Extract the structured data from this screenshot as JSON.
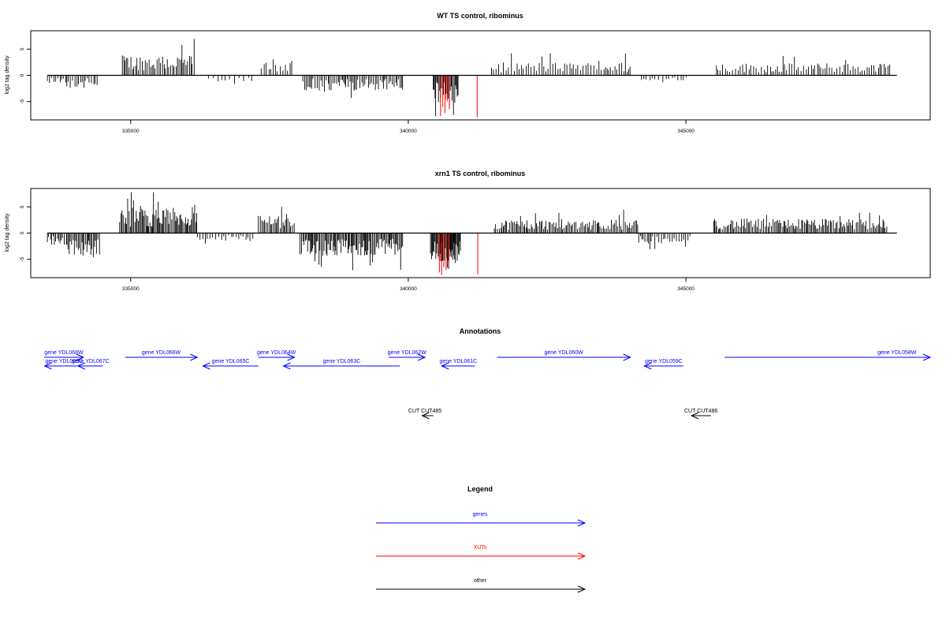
{
  "chart_data": [
    {
      "type": "bar",
      "title": "WT TS control, ribominus",
      "ylabel": "log2 tag density",
      "xlim": [
        333200,
        349400
      ],
      "ylim": [
        -8.5,
        8.5
      ],
      "x_ticks": [
        335000,
        340000,
        345000
      ],
      "y_ticks": [
        -5,
        0,
        5
      ],
      "grid": false,
      "regions": [
        {
          "from": 333500,
          "to": 333850,
          "sign": -1,
          "mean": 1.0,
          "step": 35
        },
        {
          "from": 333850,
          "to": 334400,
          "sign": -1,
          "mean": 1.7,
          "step": 35
        },
        {
          "from": 334850,
          "to": 336150,
          "sign": 1,
          "mean": 2.7,
          "step": 28
        },
        {
          "from": 336400,
          "to": 337200,
          "sign": -1,
          "mean": 0.8,
          "step": 70
        },
        {
          "from": 337350,
          "to": 337950,
          "sign": 1,
          "mean": 1.9,
          "step": 45
        },
        {
          "from": 338100,
          "to": 339900,
          "sign": -1,
          "mean": 2.0,
          "step": 28
        },
        {
          "from": 340450,
          "to": 340900,
          "sign": -1,
          "mean": 3.6,
          "step": 18
        },
        {
          "from": 341500,
          "to": 344000,
          "sign": 1,
          "mean": 1.7,
          "step": 40
        },
        {
          "from": 344200,
          "to": 345050,
          "sign": -1,
          "mean": 0.8,
          "step": 60
        },
        {
          "from": 345550,
          "to": 348700,
          "sign": 1,
          "mean": 1.6,
          "step": 40
        }
      ],
      "xut_peaks": [
        {
          "x": 340580,
          "y": -7.8
        },
        {
          "x": 340620,
          "y": -6.0
        },
        {
          "x": 340660,
          "y": -7.2
        },
        {
          "x": 340700,
          "y": -5.0
        },
        {
          "x": 340740,
          "y": -6.5
        },
        {
          "x": 341240,
          "y": -8.0
        }
      ]
    },
    {
      "type": "bar",
      "title": "xrn1 TS control, ribominus",
      "ylabel": "log2 tag density",
      "xlim": [
        333200,
        349400
      ],
      "ylim": [
        -8.5,
        8.5
      ],
      "x_ticks": [
        335000,
        340000,
        345000
      ],
      "y_ticks": [
        -5,
        0,
        5
      ],
      "grid": false,
      "regions": [
        {
          "from": 333500,
          "to": 333850,
          "sign": -1,
          "mean": 1.6,
          "step": 30
        },
        {
          "from": 333850,
          "to": 334450,
          "sign": -1,
          "mean": 3.3,
          "step": 22
        },
        {
          "from": 334800,
          "to": 336200,
          "sign": 1,
          "mean": 3.4,
          "step": 20
        },
        {
          "from": 336200,
          "to": 337200,
          "sign": -1,
          "mean": 1.0,
          "step": 45
        },
        {
          "from": 337300,
          "to": 337950,
          "sign": 1,
          "mean": 2.6,
          "step": 25
        },
        {
          "from": 338050,
          "to": 339900,
          "sign": -1,
          "mean": 3.0,
          "step": 20
        },
        {
          "from": 340400,
          "to": 340950,
          "sign": -1,
          "mean": 4.0,
          "step": 14
        },
        {
          "from": 341550,
          "to": 344150,
          "sign": 1,
          "mean": 1.8,
          "step": 25
        },
        {
          "from": 344150,
          "to": 345100,
          "sign": -1,
          "mean": 1.4,
          "step": 35
        },
        {
          "from": 345500,
          "to": 348650,
          "sign": 1,
          "mean": 1.9,
          "step": 25
        }
      ],
      "xut_peaks": [
        {
          "x": 340560,
          "y": -7.5
        },
        {
          "x": 340600,
          "y": -8.0
        },
        {
          "x": 340640,
          "y": -6.5
        },
        {
          "x": 340680,
          "y": -7.0
        },
        {
          "x": 340730,
          "y": -5.5
        },
        {
          "x": 341250,
          "y": -7.9
        }
      ]
    }
  ],
  "annotations": {
    "title": "Annotations",
    "genes": [
      {
        "label": "gene YDL068W",
        "from": 333400,
        "to": 334150,
        "dir": "right",
        "row": 0
      },
      {
        "label": "gene YDL069C",
        "from": 333450,
        "to": 334150,
        "dir": "left",
        "row": 1
      },
      {
        "label": "gene YDL067C",
        "from": 334050,
        "to": 334500,
        "dir": "left",
        "row": 1
      },
      {
        "label": "gene YDL066W",
        "from": 334900,
        "to": 336200,
        "dir": "right",
        "row": 0
      },
      {
        "label": "gene YDL065C",
        "from": 336300,
        "to": 337300,
        "dir": "left",
        "row": 1
      },
      {
        "label": "gene YDL064W",
        "from": 337300,
        "to": 337950,
        "dir": "right",
        "row": 0
      },
      {
        "label": "gene YDL063C",
        "from": 337750,
        "to": 339850,
        "dir": "left",
        "row": 1
      },
      {
        "label": "gene YDL062W",
        "from": 339650,
        "to": 340300,
        "dir": "right",
        "row": 0
      },
      {
        "label": "gene YDL061C",
        "from": 340600,
        "to": 341200,
        "dir": "left",
        "row": 1
      },
      {
        "label": "gene YDL060W",
        "from": 341600,
        "to": 344000,
        "dir": "right",
        "row": 0
      },
      {
        "label": "gene YDL059C",
        "from": 344250,
        "to": 344950,
        "dir": "left",
        "row": 1
      },
      {
        "label": "gene YDL058W",
        "from": 345700,
        "to": 349400,
        "dir": "right",
        "row": 0,
        "label_x": 348800
      }
    ],
    "others": [
      {
        "label": "CUT CUT485",
        "from": 340250,
        "to": 340450,
        "dir": "left",
        "label_x": 340300
      },
      {
        "label": "CUT CUT486",
        "from": 345100,
        "to": 345450,
        "dir": "left",
        "label_x": 345270
      }
    ]
  },
  "legend": {
    "title": "Legend",
    "items": [
      {
        "label": "genes",
        "color": "#0000ff"
      },
      {
        "label": "XUTs",
        "color": "#ff0000"
      },
      {
        "label": "other",
        "color": "#000000"
      }
    ]
  },
  "colors": {
    "signal": "#000000",
    "xut": "#ff0000",
    "gene": "#0000ff",
    "other": "#000000"
  }
}
